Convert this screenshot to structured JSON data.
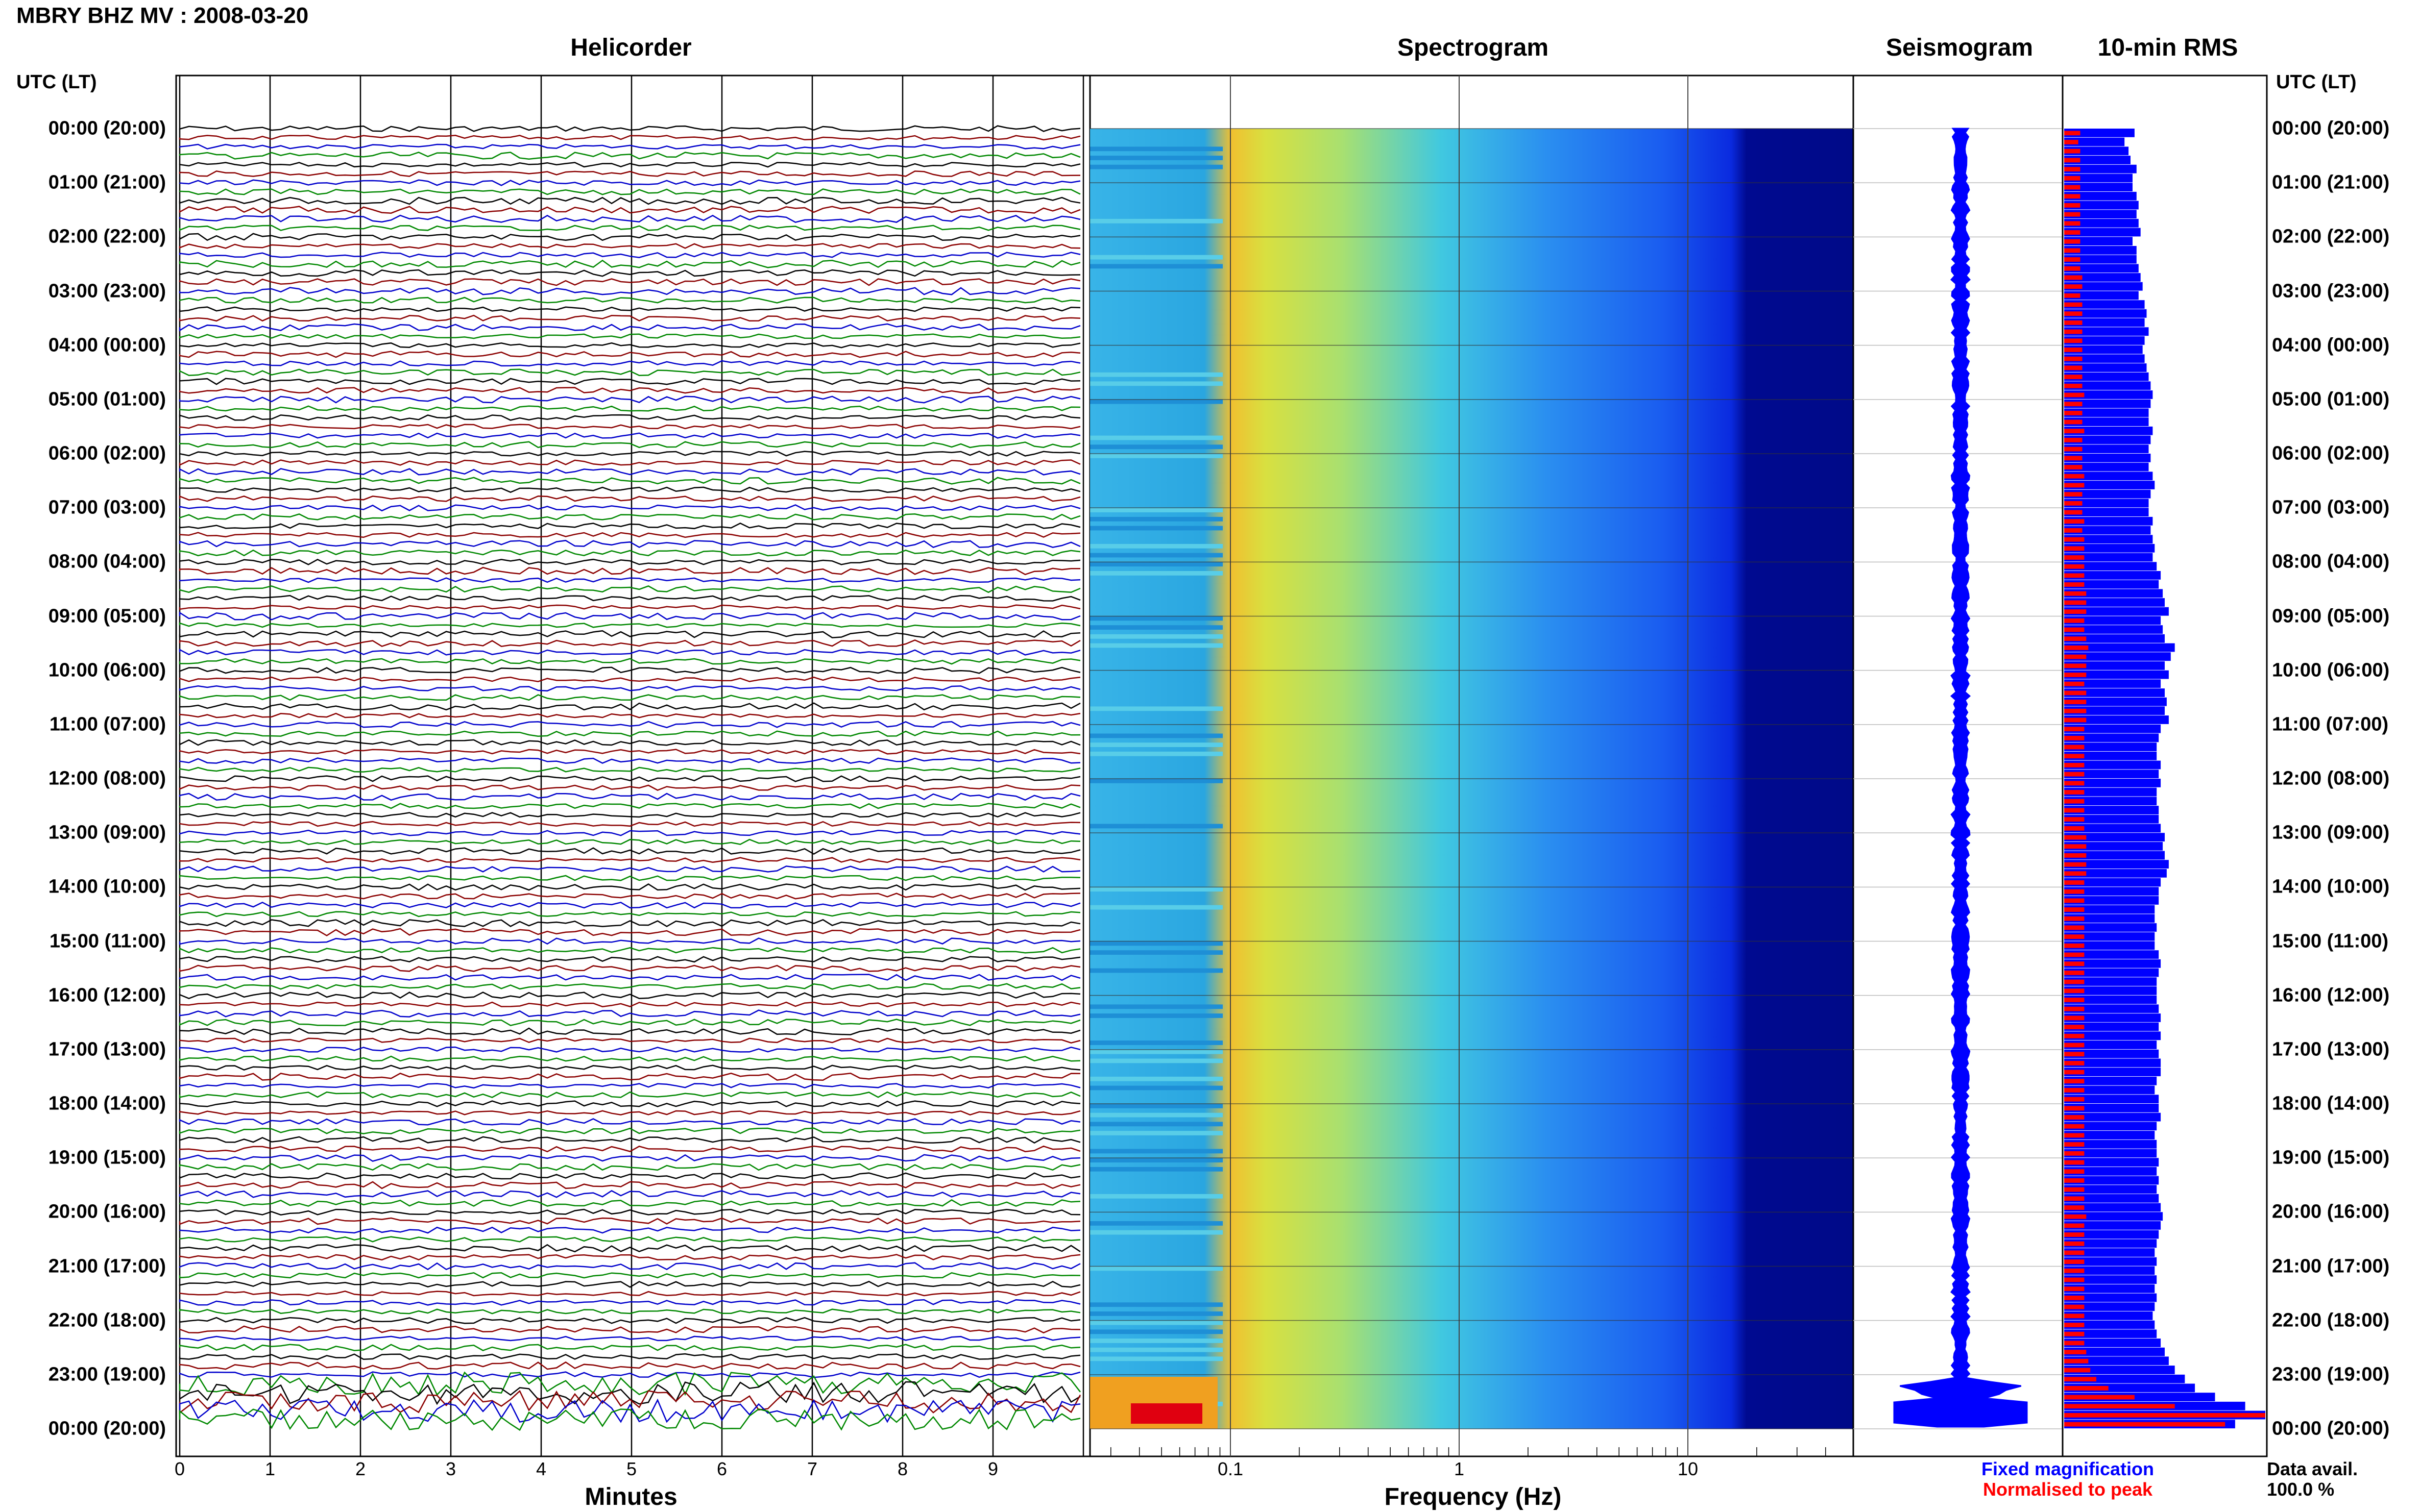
{
  "header": {
    "title": "MBRY BHZ MV : 2008-03-20"
  },
  "panels": {
    "helicorder": "Helicorder",
    "spectrogram": "Spectrogram",
    "seismogram": "Seismogram",
    "rms": "10-min RMS"
  },
  "time_axis_header": "UTC (LT)",
  "time_labels": [
    "00:00 (20:00)",
    "01:00 (21:00)",
    "02:00 (22:00)",
    "03:00 (23:00)",
    "04:00 (00:00)",
    "05:00 (01:00)",
    "06:00 (02:00)",
    "07:00 (03:00)",
    "08:00 (04:00)",
    "09:00 (05:00)",
    "10:00 (06:00)",
    "11:00 (07:00)",
    "12:00 (08:00)",
    "13:00 (09:00)",
    "14:00 (10:00)",
    "15:00 (11:00)",
    "16:00 (12:00)",
    "17:00 (13:00)",
    "18:00 (14:00)",
    "19:00 (15:00)",
    "20:00 (16:00)",
    "21:00 (17:00)",
    "22:00 (18:00)",
    "23:00 (19:00)",
    "00:00 (20:00)"
  ],
  "helicorder_axis": {
    "label": "Minutes",
    "ticks": [
      "0",
      "1",
      "2",
      "3",
      "4",
      "5",
      "6",
      "7",
      "8",
      "9"
    ]
  },
  "spectrogram_axis": {
    "label": "Frequency (Hz)",
    "ticks": [
      "0.1",
      "1",
      "10"
    ],
    "scale": "log"
  },
  "legend": {
    "fixed": "Fixed magnification",
    "normalised": "Normalised to peak",
    "fixed_color": "#0000ff",
    "normalised_color": "#ff0000"
  },
  "data_avail": {
    "label": "Data avail.",
    "value": "100.0 %"
  },
  "colors": {
    "trace_cycle": [
      "#000000",
      "#8b0000",
      "#0000cc",
      "#008800"
    ],
    "rms_blue": "#0000ff",
    "rms_red": "#ff0000"
  },
  "chart_data": {
    "type": "heatmap",
    "title": "MBRY BHZ MV : 2008-03-20",
    "time_range_utc": [
      "00:00",
      "24:00"
    ],
    "helicorder": {
      "traces": 144,
      "minutes_per_trace": 10,
      "xlim": [
        0,
        10
      ],
      "xlabel": "Minutes"
    },
    "spectrogram": {
      "xlabel": "Frequency (Hz)",
      "xscale": "log",
      "xticks": [
        0.1,
        1,
        10
      ]
    },
    "rms_10min": {
      "series": [
        {
          "name": "Fixed magnification",
          "color": "#0000ff",
          "values": [
            0.35,
            0.3,
            0.32,
            0.33,
            0.36,
            0.34,
            0.34,
            0.36,
            0.37,
            0.36,
            0.37,
            0.38,
            0.34,
            0.36,
            0.36,
            0.37,
            0.38,
            0.39,
            0.37,
            0.4,
            0.41,
            0.4,
            0.42,
            0.4,
            0.39,
            0.4,
            0.41,
            0.42,
            0.43,
            0.44,
            0.43,
            0.42,
            0.42,
            0.44,
            0.43,
            0.42,
            0.43,
            0.42,
            0.44,
            0.45,
            0.43,
            0.42,
            0.42,
            0.44,
            0.43,
            0.44,
            0.45,
            0.44,
            0.46,
            0.48,
            0.47,
            0.49,
            0.5,
            0.52,
            0.48,
            0.49,
            0.5,
            0.55,
            0.53,
            0.5,
            0.52,
            0.48,
            0.5,
            0.51,
            0.5,
            0.52,
            0.48,
            0.47,
            0.46,
            0.46,
            0.48,
            0.47,
            0.48,
            0.46,
            0.46,
            0.47,
            0.47,
            0.48,
            0.5,
            0.49,
            0.5,
            0.52,
            0.51,
            0.48,
            0.47,
            0.47,
            0.45,
            0.45,
            0.46,
            0.45,
            0.45,
            0.47,
            0.48,
            0.47,
            0.46,
            0.46,
            0.46,
            0.47,
            0.48,
            0.47,
            0.48,
            0.46,
            0.47,
            0.48,
            0.48,
            0.46,
            0.45,
            0.47,
            0.47,
            0.48,
            0.46,
            0.45,
            0.46,
            0.46,
            0.47,
            0.46,
            0.47,
            0.46,
            0.47,
            0.48,
            0.49,
            0.48,
            0.47,
            0.46,
            0.45,
            0.46,
            0.45,
            0.46,
            0.45,
            0.46,
            0.45,
            0.44,
            0.45,
            0.46,
            0.48,
            0.5,
            0.52,
            0.55,
            0.6,
            0.65,
            0.75,
            0.9,
            1.0,
            0.85
          ]
        },
        {
          "name": "Normalised to peak",
          "color": "#ff0000",
          "values": [
            0.08,
            0.07,
            0.08,
            0.08,
            0.08,
            0.08,
            0.08,
            0.08,
            0.08,
            0.08,
            0.08,
            0.08,
            0.08,
            0.08,
            0.08,
            0.08,
            0.09,
            0.09,
            0.08,
            0.09,
            0.09,
            0.09,
            0.09,
            0.09,
            0.09,
            0.09,
            0.09,
            0.09,
            0.09,
            0.1,
            0.09,
            0.09,
            0.09,
            0.1,
            0.09,
            0.09,
            0.09,
            0.09,
            0.1,
            0.1,
            0.09,
            0.09,
            0.09,
            0.1,
            0.09,
            0.1,
            0.1,
            0.1,
            0.1,
            0.1,
            0.1,
            0.11,
            0.11,
            0.11,
            0.1,
            0.1,
            0.11,
            0.12,
            0.11,
            0.11,
            0.11,
            0.1,
            0.11,
            0.11,
            0.11,
            0.11,
            0.1,
            0.1,
            0.1,
            0.1,
            0.1,
            0.1,
            0.1,
            0.1,
            0.1,
            0.1,
            0.1,
            0.1,
            0.11,
            0.11,
            0.11,
            0.11,
            0.11,
            0.1,
            0.1,
            0.1,
            0.1,
            0.1,
            0.1,
            0.1,
            0.1,
            0.1,
            0.1,
            0.1,
            0.1,
            0.1,
            0.1,
            0.1,
            0.1,
            0.1,
            0.1,
            0.1,
            0.1,
            0.1,
            0.1,
            0.1,
            0.1,
            0.1,
            0.1,
            0.1,
            0.1,
            0.1,
            0.1,
            0.1,
            0.1,
            0.1,
            0.1,
            0.1,
            0.1,
            0.1,
            0.11,
            0.1,
            0.1,
            0.1,
            0.1,
            0.1,
            0.1,
            0.1,
            0.1,
            0.1,
            0.1,
            0.1,
            0.1,
            0.1,
            0.1,
            0.11,
            0.12,
            0.13,
            0.16,
            0.22,
            0.35,
            0.55,
            1.0,
            0.8
          ]
        }
      ]
    }
  }
}
